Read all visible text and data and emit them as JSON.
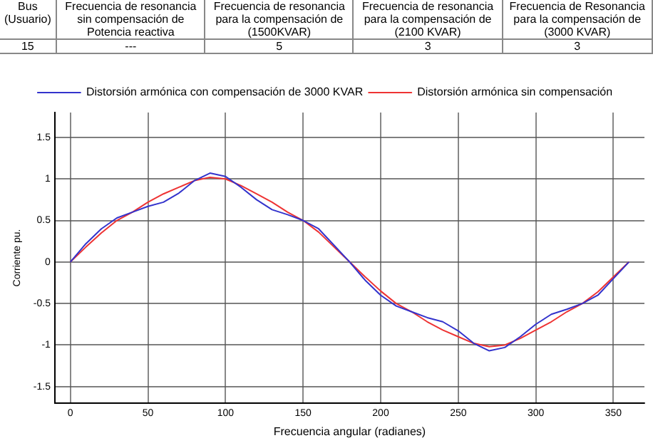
{
  "chart_data": {
    "type": "line",
    "xlabel": "Frecuencia angular (radianes)",
    "ylabel": "Corriente pu.",
    "x": [
      0,
      10,
      20,
      30,
      40,
      50,
      60,
      70,
      80,
      90,
      100,
      110,
      120,
      130,
      140,
      150,
      160,
      170,
      180,
      190,
      200,
      210,
      220,
      230,
      240,
      250,
      260,
      270,
      280,
      290,
      300,
      310,
      320,
      330,
      340,
      350,
      360
    ],
    "series": [
      {
        "name": "Distorsión armónica con compensación de 3000 KVAR",
        "color": "#3333cc",
        "values": [
          0,
          0.22,
          0.4,
          0.53,
          0.6,
          0.67,
          0.72,
          0.83,
          0.98,
          1.07,
          1.03,
          0.9,
          0.75,
          0.63,
          0.57,
          0.5,
          0.4,
          0.2,
          0,
          -0.22,
          -0.4,
          -0.53,
          -0.6,
          -0.67,
          -0.72,
          -0.83,
          -0.98,
          -1.07,
          -1.03,
          -0.9,
          -0.75,
          -0.63,
          -0.57,
          -0.5,
          -0.4,
          -0.2,
          0
        ]
      },
      {
        "name": "Distorsión armónica sin compensación",
        "color": "#ee3333",
        "values": [
          0,
          0.18,
          0.35,
          0.5,
          0.6,
          0.72,
          0.82,
          0.9,
          0.98,
          1.02,
          1.0,
          0.92,
          0.82,
          0.72,
          0.6,
          0.5,
          0.36,
          0.18,
          0,
          -0.18,
          -0.35,
          -0.5,
          -0.6,
          -0.72,
          -0.82,
          -0.9,
          -0.98,
          -1.02,
          -1.0,
          -0.92,
          -0.82,
          -0.72,
          -0.6,
          -0.5,
          -0.36,
          -0.18,
          0
        ]
      }
    ],
    "xlim": [
      -10,
      370
    ],
    "xticks": [
      0,
      50,
      100,
      150,
      200,
      250,
      300,
      350
    ],
    "ylim": [
      -1.7,
      1.8
    ],
    "yticks": [
      -1.5,
      -1,
      -0.5,
      0,
      0.5,
      1,
      1.5
    ],
    "grid": true,
    "legend": "top",
    "marker": "none",
    "line_style": "solid",
    "annotations": [
      "Bus (Usuario)",
      "Frecuencia de resonancia sin compensación de Potencia reactiva",
      "Frecuencia de resonancia para la compensación de (1500KVAR)",
      "Frecuencia de resonancia para la compensación de (2100 KVAR)",
      "Frecuencia de Resonancia para la compensación de (3000 KVAR)",
      "15",
      "---",
      "5",
      "3",
      "3"
    ]
  }
}
